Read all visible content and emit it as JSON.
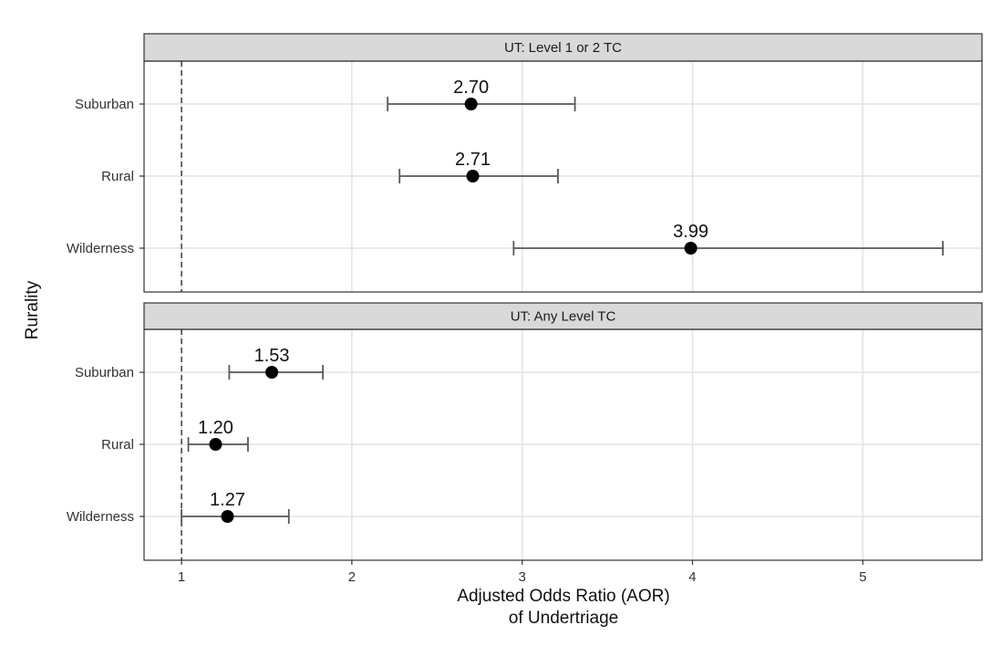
{
  "chart_data": {
    "type": "scatter",
    "subtype": "forest-plot-faceted",
    "xlabel_lines": [
      "Adjusted Odds Ratio (AOR)",
      "of Undertriage"
    ],
    "ylabel": "Rurality",
    "xlim": [
      0.78,
      5.7
    ],
    "x_ticks": [
      1,
      2,
      3,
      4,
      5
    ],
    "x_tick_labels": [
      "1",
      "2",
      "3",
      "4",
      "5"
    ],
    "reference_line": 1,
    "grid": true,
    "categories": [
      "Suburban",
      "Rural",
      "Wilderness"
    ],
    "panels": [
      {
        "title": "UT: Level 1 or 2 TC",
        "points": [
          {
            "category": "Suburban",
            "aor": 2.7,
            "lower": 2.21,
            "upper": 3.31,
            "label": "2.70"
          },
          {
            "category": "Rural",
            "aor": 2.71,
            "lower": 2.28,
            "upper": 3.21,
            "label": "2.71"
          },
          {
            "category": "Wilderness",
            "aor": 3.99,
            "lower": 2.95,
            "upper": 5.47,
            "label": "3.99"
          }
        ]
      },
      {
        "title": "UT: Any Level TC",
        "points": [
          {
            "category": "Suburban",
            "aor": 1.53,
            "lower": 1.28,
            "upper": 1.83,
            "label": "1.53"
          },
          {
            "category": "Rural",
            "aor": 1.2,
            "lower": 1.04,
            "upper": 1.39,
            "label": "1.20"
          },
          {
            "category": "Wilderness",
            "aor": 1.27,
            "lower": 1.0,
            "upper": 1.63,
            "label": "1.27"
          }
        ]
      }
    ],
    "colors": {
      "point": "#000000",
      "errorbar": "#595959",
      "grid": "#e3e3e3",
      "strip_bg": "#d9d9d9",
      "panel_border": "#333333",
      "reference": "#333333"
    }
  }
}
